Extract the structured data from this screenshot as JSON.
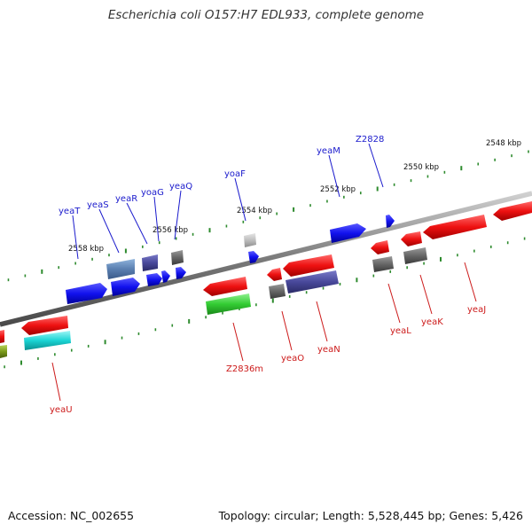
{
  "title": "Escherichia coli O157:H7 EDL933, complete genome",
  "footer": {
    "accession": "Accession: NC_002655",
    "summary": "Topology: circular; Length: 5,528,445 bp; Genes: 5,426"
  },
  "colors": {
    "background": "#ffffff",
    "backbone": "#8c8c8c",
    "ticks": "#2e8b2e",
    "forward_label": "#1a1acc",
    "reverse_label": "#cc1a1a",
    "kbp_label": "#111111"
  },
  "scale_ticks": [
    "2548 kbp",
    "2550 kbp",
    "2552 kbp",
    "2554 kbp",
    "2556 kbp",
    "2558 kbp"
  ],
  "forward_labels": [
    "yeaT",
    "yeaS",
    "yeaR",
    "yoaG",
    "yeaQ",
    "yoaF",
    "yeaM",
    "Z2828"
  ],
  "reverse_labels": [
    "yeaU",
    "Z2836m",
    "yeaO",
    "yeaN",
    "yeaL",
    "yeaK",
    "yeaJ"
  ],
  "gene_colors": [
    "#ff1a1a",
    "#1a1aff",
    "#4a4a9e",
    "#5a7fb0",
    "#686868",
    "#33cc33",
    "#1ad4d4",
    "#bcbcbc",
    "#7a9a1a"
  ]
}
